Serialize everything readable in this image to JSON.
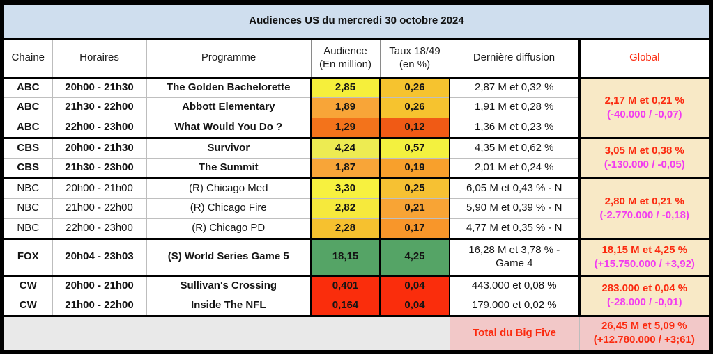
{
  "title": "Audiences US du mercredi 30 octobre 2024",
  "columns": {
    "chaine": "Chaine",
    "horaires": "Horaires",
    "programme": "Programme",
    "audience_l1": "Audience",
    "audience_l2": "(En million)",
    "taux_l1": "Taux 18/49",
    "taux_l2": "(en %)",
    "derniere": "Dernière diffusion",
    "global": "Global"
  },
  "colors": {
    "title_bg": "#CFDEEE",
    "global_bg": "#F8E9C6",
    "total_bg": "#F2C8C8",
    "empty_bg": "#E9E9E9",
    "red": "#FB2A0F",
    "magenta": "#F23BF0",
    "green": "#55A466",
    "cell_red": "#FA2D0C"
  },
  "groups": [
    {
      "channel": "ABC",
      "bold": true,
      "rows": [
        {
          "channel": "ABC",
          "time": "20h00 - 21h30",
          "program": "The Golden Bachelorette",
          "audience": "2,85",
          "audience_bg": "#F6EF3B",
          "rate": "0,26",
          "rate_bg": "#F6C32F",
          "last": "2,87 M et 0,32 %"
        },
        {
          "channel": "ABC",
          "time": "21h30 - 22h00",
          "program": "Abbott Elementary",
          "audience": "1,89",
          "audience_bg": "#F8A538",
          "rate": "0,26",
          "rate_bg": "#F6C32F",
          "last": "1,91 M et 0,28 %"
        },
        {
          "channel": "ABC",
          "time": "22h00 - 23h00",
          "program": "What Would You Do ?",
          "audience": "1,29",
          "audience_bg": "#F3731B",
          "rate": "0,12",
          "rate_bg": "#F05A15",
          "last": "1,36 M et 0,23 %"
        }
      ],
      "global": {
        "line1": "2,17 M et 0,21 %",
        "line2": "(-40.000 / -0,07)",
        "line1_color": "#FB2A0F",
        "line2_color": "#F23BF0"
      }
    },
    {
      "channel": "CBS",
      "bold": true,
      "rows": [
        {
          "channel": "CBS",
          "time": "20h00 - 21h30",
          "program": "Survivor",
          "audience": "4,24",
          "audience_bg": "#EDEB52",
          "rate": "0,57",
          "rate_bg": "#F3F13F",
          "last": "4,35 M et 0,62 %"
        },
        {
          "channel": "CBS",
          "time": "21h30 - 23h00",
          "program": "The Summit",
          "audience": "1,87",
          "audience_bg": "#F8A538",
          "rate": "0,19",
          "rate_bg": "#F8A02C",
          "last": "2,01 M et 0,24 %"
        }
      ],
      "global": {
        "line1": "3,05 M et 0,38 %",
        "line2": "(-130.000 / -0,05)",
        "line1_color": "#FB2A0F",
        "line2_color": "#F23BF0"
      }
    },
    {
      "channel": "NBC",
      "bold": false,
      "rows": [
        {
          "channel": "NBC",
          "time": "20h00 - 21h00",
          "program": "(R) Chicago Med",
          "audience": "3,30",
          "audience_bg": "#F7F13F",
          "rate": "0,25",
          "rate_bg": "#F6C133",
          "last": "6,05 M et 0,43 % - N"
        },
        {
          "channel": "NBC",
          "time": "21h00 - 22h00",
          "program": "(R) Chicago Fire",
          "audience": "2,82",
          "audience_bg": "#F6E93C",
          "rate": "0,21",
          "rate_bg": "#F8A435",
          "last": "5,90 M et 0,39 % - N"
        },
        {
          "channel": "NBC",
          "time": "22h00 - 23h00",
          "program": "(R) Chicago PD",
          "audience": "2,28",
          "audience_bg": "#F6C12F",
          "rate": "0,17",
          "rate_bg": "#F8962A",
          "last": "4,77 M et 0,35 % - N"
        }
      ],
      "global": {
        "line1": "2,80 M et 0,21 %",
        "line2": "(-2.770.000 / -0,18)",
        "line1_color": "#FB2A0F",
        "line2_color": "#F23BF0"
      }
    },
    {
      "channel": "FOX",
      "bold": true,
      "rows": [
        {
          "channel": "FOX",
          "time": "20h04 - 23h03",
          "program": "(S) World Series Game 5",
          "audience": "18,15",
          "audience_bg": "#55A466",
          "rate": "4,25",
          "rate_bg": "#55A466",
          "last": "16,28 M et 3,78 % - Game 4"
        }
      ],
      "global": {
        "line1": "18,15 M et 4,25 %",
        "line2": "(+15.750.000 / +3,92)",
        "line1_color": "#FB2A0F",
        "line2_color": "#F23BF0"
      }
    },
    {
      "channel": "CW",
      "bold": true,
      "rows": [
        {
          "channel": "CW",
          "time": "20h00 - 21h00",
          "program": "Sullivan's Crossing",
          "audience": "0,401",
          "audience_bg": "#FA2D0C",
          "rate": "0,04",
          "rate_bg": "#FA2D0C",
          "last": "443.000 et 0,08 %"
        },
        {
          "channel": "CW",
          "time": "21h00 - 22h00",
          "program": "Inside The NFL",
          "audience": "0,164",
          "audience_bg": "#FA2D0C",
          "rate": "0,04",
          "rate_bg": "#FA2D0C",
          "last": "179.000 et 0,02 %"
        }
      ],
      "global": {
        "line1": "283.000 et 0,04 %",
        "line2": "(-28.000 / -0,01)",
        "line1_color": "#FB2A0F",
        "line2_color": "#F23BF0"
      }
    }
  ],
  "total": {
    "label": "Total du Big Five",
    "line1": "26,45 M et 5,09 %",
    "line2": "(+12.780.000 / +3;61)",
    "line1_color": "#FB2A0F",
    "line2_color": "#FB2A0F"
  },
  "chart_data": {
    "type": "table",
    "title": "Audiences US du mercredi 30 octobre 2024",
    "columns": [
      "Chaine",
      "Horaires",
      "Programme",
      "Audience (En million)",
      "Taux 18/49 (en %)",
      "Dernière diffusion",
      "Global"
    ],
    "rows": [
      [
        "ABC",
        "20h00 - 21h30",
        "The Golden Bachelorette",
        2.85,
        0.26,
        "2,87 M et 0,32 %",
        "2,17 M et 0,21 % (-40.000 / -0,07)"
      ],
      [
        "ABC",
        "21h30 - 22h00",
        "Abbott Elementary",
        1.89,
        0.26,
        "1,91 M et 0,28 %",
        "2,17 M et 0,21 % (-40.000 / -0,07)"
      ],
      [
        "ABC",
        "22h00 - 23h00",
        "What Would You Do ?",
        1.29,
        0.12,
        "1,36 M et 0,23 %",
        "2,17 M et 0,21 % (-40.000 / -0,07)"
      ],
      [
        "CBS",
        "20h00 - 21h30",
        "Survivor",
        4.24,
        0.57,
        "4,35 M et 0,62 %",
        "3,05 M et 0,38 % (-130.000 / -0,05)"
      ],
      [
        "CBS",
        "21h30 - 23h00",
        "The Summit",
        1.87,
        0.19,
        "2,01 M et 0,24 %",
        "3,05 M et 0,38 % (-130.000 / -0,05)"
      ],
      [
        "NBC",
        "20h00 - 21h00",
        "(R) Chicago Med",
        3.3,
        0.25,
        "6,05 M et 0,43 % - N",
        "2,80 M et 0,21 % (-2.770.000 / -0,18)"
      ],
      [
        "NBC",
        "21h00 - 22h00",
        "(R) Chicago Fire",
        2.82,
        0.21,
        "5,90 M et 0,39 % - N",
        "2,80 M et 0,21 % (-2.770.000 / -0,18)"
      ],
      [
        "NBC",
        "22h00 - 23h00",
        "(R) Chicago PD",
        2.28,
        0.17,
        "4,77 M et 0,35 % - N",
        "2,80 M et 0,21 % (-2.770.000 / -0,18)"
      ],
      [
        "FOX",
        "20h04 - 23h03",
        "(S) World Series Game 5",
        18.15,
        4.25,
        "16,28 M et 3,78 % - Game 4",
        "18,15 M et 4,25 % (+15.750.000 / +3,92)"
      ],
      [
        "CW",
        "20h00 - 21h00",
        "Sullivan's Crossing",
        0.401,
        0.04,
        "443.000 et 0,08 %",
        "283.000 et 0,04 % (-28.000 / -0,01)"
      ],
      [
        "CW",
        "21h00 - 22h00",
        "Inside The NFL",
        0.164,
        0.04,
        "179.000 et 0,02 %",
        "283.000 et 0,04 % (-28.000 / -0,01)"
      ]
    ],
    "total_row": [
      "Total du Big Five",
      "26,45 M et 5,09 % (+12.780.000 / +3;61)"
    ]
  }
}
